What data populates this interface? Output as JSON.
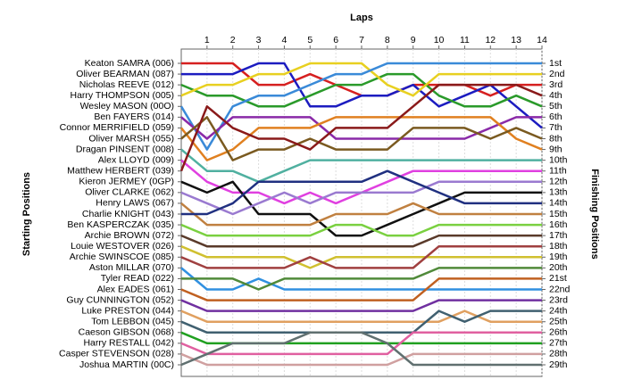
{
  "chart_data": {
    "type": "lap",
    "title": "Laps",
    "y_title": "Starting Positions",
    "y2_title": "Finishing Positions",
    "x": [
      0,
      1,
      2,
      3,
      4,
      5,
      6,
      7,
      8,
      9,
      10,
      11,
      12,
      13,
      14
    ],
    "xlim": [
      0,
      14
    ],
    "xticks": [
      1,
      2,
      3,
      4,
      5,
      6,
      7,
      8,
      9,
      10,
      11,
      12,
      13,
      14
    ],
    "ylim": [
      1,
      29
    ],
    "y_inverted": true,
    "grid": true,
    "y2ticks": [
      {
        "value": 1,
        "label": "1st"
      },
      {
        "value": 2,
        "label": "2nd"
      },
      {
        "value": 3,
        "label": "3rd"
      },
      {
        "value": 4,
        "label": "4th"
      },
      {
        "value": 5,
        "label": "5th"
      },
      {
        "value": 6,
        "label": "6th"
      },
      {
        "value": 7,
        "label": "7th"
      },
      {
        "value": 8,
        "label": "8th"
      },
      {
        "value": 9,
        "label": "9th"
      },
      {
        "value": 10,
        "label": "10th"
      },
      {
        "value": 11,
        "label": "11th"
      },
      {
        "value": 12,
        "label": "12th"
      },
      {
        "value": 13,
        "label": "13th"
      },
      {
        "value": 14,
        "label": "14th"
      },
      {
        "value": 15,
        "label": "15th"
      },
      {
        "value": 16,
        "label": "16th"
      },
      {
        "value": 17,
        "label": "17th"
      },
      {
        "value": 18,
        "label": "18th"
      },
      {
        "value": 19,
        "label": "19th"
      },
      {
        "value": 20,
        "label": "20th"
      },
      {
        "value": 21,
        "label": "21st"
      },
      {
        "value": 22,
        "label": "22nd"
      },
      {
        "value": 23,
        "label": "23rd"
      },
      {
        "value": 24,
        "label": "24th"
      },
      {
        "value": 25,
        "label": "25th"
      },
      {
        "value": 26,
        "label": "26th"
      },
      {
        "value": 27,
        "label": "27th"
      },
      {
        "value": 28,
        "label": "28th"
      },
      {
        "value": 29,
        "label": "29th"
      }
    ],
    "series": [
      {
        "name": "Keaton SAMRA (006)",
        "color": "#d62020",
        "values": [
          1,
          1,
          1,
          3,
          3,
          2,
          3,
          4,
          4,
          3,
          3,
          3,
          4,
          3,
          3
        ]
      },
      {
        "name": "Oliver BEARMAN (087)",
        "color": "#1c1cc0",
        "values": [
          2,
          2,
          2,
          1,
          1,
          5,
          5,
          4,
          4,
          3,
          5,
          4,
          3,
          5,
          7
        ]
      },
      {
        "name": "Nicholas REEVE (012)",
        "color": "#2a9a2a",
        "values": [
          3,
          4,
          4,
          5,
          5,
          4,
          3,
          3,
          2,
          2,
          4,
          5,
          5,
          4,
          5
        ]
      },
      {
        "name": "Harry THOMPSON (005)",
        "color": "#e8d020",
        "values": [
          4,
          3,
          3,
          2,
          2,
          1,
          1,
          1,
          3,
          4,
          2,
          2,
          2,
          2,
          2
        ]
      },
      {
        "name": "Wesley MASON (00O)",
        "color": "#3a8ad8",
        "values": [
          5,
          9,
          5,
          4,
          4,
          3,
          2,
          2,
          1,
          1,
          1,
          1,
          1,
          1,
          1
        ]
      },
      {
        "name": "Ben FAYERS (014)",
        "color": "#8a2aa8",
        "values": [
          6,
          8,
          6,
          6,
          6,
          6,
          8,
          8,
          8,
          8,
          8,
          8,
          7,
          6,
          6
        ]
      },
      {
        "name": "Connor MERRIFIELD (059)",
        "color": "#e08020",
        "values": [
          7,
          10,
          9,
          7,
          7,
          7,
          6,
          6,
          6,
          6,
          6,
          6,
          6,
          8,
          9
        ]
      },
      {
        "name": "Oliver MARSH (055)",
        "color": "#7a5a20",
        "values": [
          8,
          6,
          10,
          9,
          9,
          8,
          9,
          9,
          9,
          7,
          7,
          7,
          8,
          7,
          8
        ]
      },
      {
        "name": "Dragan PINSENT (008)",
        "color": "#50b0a0",
        "values": [
          9,
          11,
          11,
          12,
          11,
          10,
          10,
          10,
          10,
          10,
          10,
          10,
          10,
          10,
          10
        ]
      },
      {
        "name": "Alex LLOYD (009)",
        "color": "#e040e0",
        "values": [
          10,
          12,
          13,
          13,
          14,
          13,
          14,
          13,
          12,
          11,
          11,
          11,
          11,
          11,
          11
        ]
      },
      {
        "name": "Matthew HERBERT (039)",
        "color": "#8a1a1a",
        "values": [
          11,
          5,
          7,
          8,
          8,
          9,
          7,
          7,
          7,
          5,
          3,
          3,
          3,
          3,
          4
        ]
      },
      {
        "name": "Kieron JERMEY (0GP)",
        "color": "#101010",
        "values": [
          12,
          13,
          12,
          15,
          15,
          15,
          17,
          17,
          16,
          15,
          14,
          13,
          13,
          13,
          13
        ]
      },
      {
        "name": "Oliver CLARKE (062)",
        "color": "#9a7ad0",
        "values": [
          13,
          14,
          15,
          14,
          13,
          14,
          13,
          13,
          13,
          13,
          12,
          12,
          12,
          12,
          12
        ]
      },
      {
        "name": "Henry LAWS (067)",
        "color": "#c08040",
        "values": [
          14,
          16,
          16,
          16,
          16,
          16,
          15,
          15,
          15,
          14,
          15,
          15,
          15,
          15,
          15
        ]
      },
      {
        "name": "Charlie KNIGHT (043)",
        "color": "#203080",
        "values": [
          15,
          15,
          14,
          12,
          12,
          12,
          12,
          12,
          11,
          12,
          13,
          14,
          14,
          14,
          14
        ]
      },
      {
        "name": "Ben KASPERCZAK (035)",
        "color": "#7ad040",
        "values": [
          16,
          17,
          17,
          17,
          17,
          17,
          16,
          16,
          17,
          17,
          16,
          16,
          16,
          16,
          16
        ]
      },
      {
        "name": "Archie BROWN (072)",
        "color": "#5a3a2a",
        "values": [
          17,
          18,
          18,
          18,
          18,
          18,
          18,
          18,
          18,
          18,
          17,
          17,
          17,
          17,
          17
        ]
      },
      {
        "name": "Louie WESTOVER (026)",
        "color": "#d0c030",
        "values": [
          18,
          19,
          19,
          19,
          19,
          20,
          19,
          19,
          19,
          19,
          19,
          19,
          19,
          19,
          19
        ]
      },
      {
        "name": "Archie SWINSCOE (085)",
        "color": "#a04040",
        "values": [
          19,
          20,
          20,
          20,
          20,
          19,
          20,
          20,
          20,
          20,
          18,
          18,
          18,
          18,
          18
        ]
      },
      {
        "name": "Aston MILLAR (070)",
        "color": "#3090e0",
        "values": [
          20,
          22,
          22,
          21,
          22,
          22,
          22,
          22,
          22,
          22,
          22,
          22,
          22,
          22,
          22
        ]
      },
      {
        "name": "Tyler READ (022)",
        "color": "#508a3a",
        "values": [
          21,
          21,
          21,
          22,
          21,
          21,
          21,
          21,
          21,
          21,
          20,
          20,
          20,
          20,
          20
        ]
      },
      {
        "name": "Alex EADES (061)",
        "color": "#c06020",
        "values": [
          22,
          23,
          23,
          23,
          23,
          23,
          23,
          23,
          23,
          23,
          21,
          21,
          21,
          21,
          21
        ]
      },
      {
        "name": "Guy CUNNINGTON (052)",
        "color": "#7030a0",
        "values": [
          23,
          24,
          24,
          24,
          24,
          24,
          24,
          24,
          24,
          24,
          23,
          23,
          23,
          23,
          23
        ]
      },
      {
        "name": "Luke PRESTON (044)",
        "color": "#e0a060",
        "values": [
          24,
          25,
          25,
          25,
          25,
          25,
          25,
          25,
          25,
          25,
          25,
          24,
          25,
          25,
          25
        ]
      },
      {
        "name": "Tom LEBBON (045)",
        "color": "#406070",
        "values": [
          25,
          26,
          26,
          26,
          26,
          26,
          26,
          26,
          26,
          26,
          24,
          25,
          24,
          24,
          24
        ]
      },
      {
        "name": "Caeson GIBSON (068)",
        "color": "#20a020",
        "values": [
          26,
          27,
          27,
          27,
          27,
          27,
          27,
          27,
          27,
          27,
          27,
          27,
          27,
          27,
          27
        ]
      },
      {
        "name": "Harry RESTALL (042)",
        "color": "#e060a0",
        "values": [
          27,
          28,
          28,
          28,
          28,
          28,
          28,
          28,
          28,
          26,
          26,
          26,
          26,
          26,
          26
        ]
      },
      {
        "name": "Casper STEVENSON (028)",
        "color": "#d0a0a0",
        "values": [
          28,
          29,
          29,
          29,
          29,
          29,
          29,
          29,
          29,
          28,
          28,
          28,
          28,
          28,
          28
        ]
      },
      {
        "name": "Joshua MARTIN (00C)",
        "color": "#607070",
        "values": [
          29,
          28,
          27,
          27,
          27,
          26,
          26,
          26,
          27,
          29,
          29,
          29,
          29,
          29,
          29
        ]
      }
    ]
  }
}
